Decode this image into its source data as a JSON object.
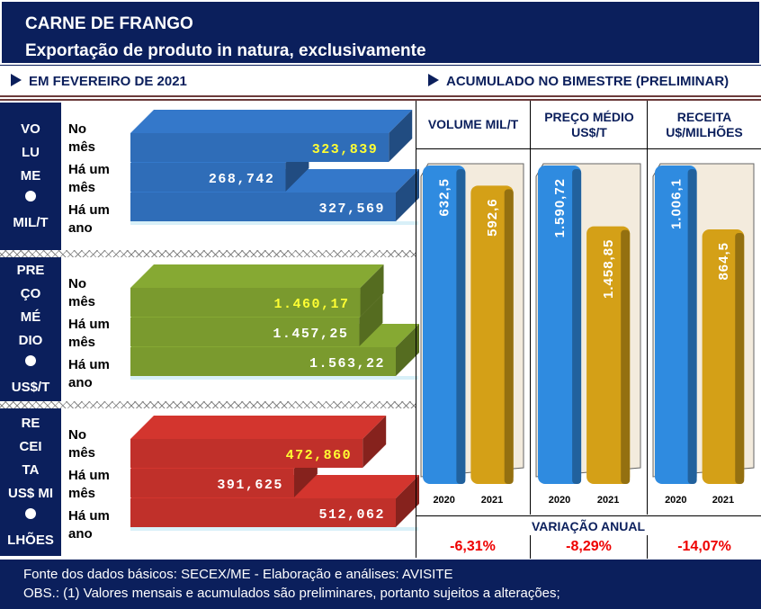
{
  "header": {
    "title": "CARNE DE FRANGO",
    "subtitle": "Exportação de produto in natura, exclusivamente"
  },
  "left_heading": "EM FEVEREIRO DE 2021",
  "right_heading": "ACUMULADO NO BIMESTRE (PRELIMINAR)",
  "row_labels": [
    [
      "No",
      "mês"
    ],
    [
      "Há um",
      "mês"
    ],
    [
      "Há um",
      "ano"
    ]
  ],
  "colors": {
    "navy": "#0b1f5c",
    "blue_bar": "#2f6db8",
    "green_bar": "#7a9a2e",
    "red_bar": "#c0302a",
    "col_2020": "#2f8be0",
    "col_2021": "#d4a017",
    "highlight_label": "#ffff33",
    "negative": "#ee0000"
  },
  "chart_data": [
    {
      "type": "bar",
      "orientation": "horizontal",
      "title": [
        "VO",
        "LU",
        "ME",
        "MIL/T"
      ],
      "categories": [
        "No mês",
        "Há um mês",
        "Há um ano"
      ],
      "values": [
        323.839,
        268.742,
        327.569
      ],
      "labels": [
        "323,839",
        "268,742",
        "327,569"
      ]
    },
    {
      "type": "bar",
      "orientation": "horizontal",
      "title": [
        "PRE",
        "ÇO",
        "MÉ",
        "DIO",
        "US$/T"
      ],
      "categories": [
        "No mês",
        "Há um mês",
        "Há um ano"
      ],
      "values": [
        1460.17,
        1457.25,
        1563.22
      ],
      "labels": [
        "1.460,17",
        "1.457,25",
        "1.563,22"
      ]
    },
    {
      "type": "bar",
      "orientation": "horizontal",
      "title": [
        "RE",
        "CEI",
        "TA",
        "US$ MI",
        "LHÕES"
      ],
      "categories": [
        "No mês",
        "Há um mês",
        "Há um ano"
      ],
      "values": [
        472.86,
        391.625,
        512.062
      ],
      "labels": [
        "472,860",
        "391,625",
        "512,062"
      ]
    },
    {
      "type": "bar",
      "title": "VOLUME MIL/T",
      "categories": [
        "2020",
        "2021"
      ],
      "values": [
        632.5,
        592.6
      ],
      "labels": [
        "632,5",
        "592,6"
      ]
    },
    {
      "type": "bar",
      "title": "PREÇO MÉDIO US$/T",
      "categories": [
        "2020",
        "2021"
      ],
      "values": [
        1590.72,
        1458.85
      ],
      "labels": [
        "1.590,72",
        "1.458,85"
      ]
    },
    {
      "type": "bar",
      "title": "RECEITA U$/MILHÕES",
      "categories": [
        "2020",
        "2021"
      ],
      "values": [
        1006.1,
        864.5
      ],
      "labels": [
        "1.006,1",
        "864,5"
      ]
    }
  ],
  "variacao": {
    "label": "VARIAÇÃO ANUAL",
    "values": [
      "-6,31%",
      "-8,29%",
      "-14,07%"
    ]
  },
  "footer": {
    "line1": "Fonte dos dados básicos: SECEX/ME - Elaboração e análises: AVISITE",
    "line2": "OBS.: (1) Valores mensais e acumulados são preliminares, portanto sujeitos a alterações;"
  }
}
